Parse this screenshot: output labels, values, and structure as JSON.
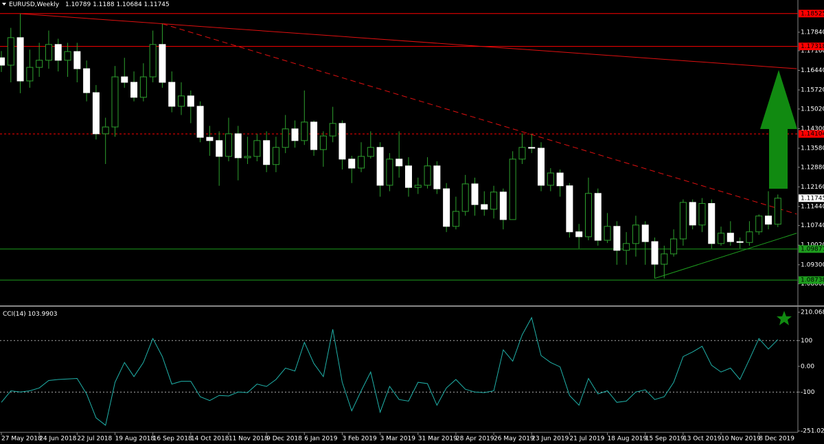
{
  "chart_data": [
    {
      "type": "candlestick",
      "title": "EURUSD,Weekly",
      "categories": [
        "27 May 2018",
        null,
        null,
        null,
        "24 Jun 2018",
        null,
        null,
        null,
        "22 Jul 2018",
        null,
        null,
        null,
        "19 Aug 2018",
        null,
        null,
        null,
        "16 Sep 2018",
        null,
        null,
        null,
        "14 Oct 2018",
        null,
        null,
        null,
        "11 Nov 2018",
        null,
        null,
        null,
        "9 Dec 2018",
        null,
        null,
        null,
        "6 Jan 2019",
        null,
        null,
        null,
        "3 Feb 2019",
        null,
        null,
        null,
        "3 Mar 2019",
        null,
        null,
        null,
        "31 Mar 2019",
        null,
        null,
        null,
        "28 Apr 2019",
        null,
        null,
        null,
        "26 May 2019",
        null,
        null,
        null,
        "23 Jun 2019",
        null,
        null,
        null,
        "21 Jul 2019",
        null,
        null,
        null,
        "18 Aug 2019",
        null,
        null,
        null,
        "15 Sep 2019",
        null,
        null,
        null,
        "13 Oct 2019",
        null,
        null,
        null,
        "10 Nov 2019",
        null,
        null,
        null,
        "8 Dec 2019",
        null,
        null
      ],
      "open": [
        1.169,
        1.1663,
        1.1764,
        1.1605,
        1.1655,
        1.1681,
        1.1739,
        1.1681,
        1.1713,
        1.165,
        1.1562,
        1.1411,
        1.1436,
        1.162,
        1.16,
        1.1545,
        1.162,
        1.1739,
        1.16,
        1.1512,
        1.155,
        1.1512,
        1.1398,
        1.1386,
        1.1328,
        1.1411,
        1.1323,
        1.1328,
        1.1386,
        1.1298,
        1.1361,
        1.1429,
        1.1386,
        1.1454,
        1.1353,
        1.1403,
        1.1449,
        1.1318,
        1.1285,
        1.1328,
        1.1361,
        1.1222,
        1.1318,
        1.1293,
        1.1214,
        1.1222,
        1.1293,
        1.1209,
        1.1071,
        1.1126,
        1.1227,
        1.1151,
        1.1134,
        1.1197,
        1.1096,
        1.1318,
        1.1361,
        1.1358,
        1.1222,
        1.1267,
        1.122,
        1.1051,
        1.1033,
        1.1192,
        1.102,
        1.1071,
        1.0983,
        1.1008,
        1.1076,
        1.1015,
        1.0932,
        1.097,
        1.1025,
        1.1159,
        1.1076,
        1.1155,
        1.1008,
        1.1046,
        1.1015,
        1.1012,
        1.1051,
        1.1109,
        1.10789
      ],
      "high": [
        1.1715,
        1.18,
        1.1852,
        1.172,
        1.1745,
        1.179,
        1.176,
        1.1745,
        1.1745,
        1.168,
        1.159,
        1.147,
        1.166,
        1.169,
        1.164,
        1.167,
        1.179,
        1.1815,
        1.164,
        1.16,
        1.157,
        1.153,
        1.144,
        1.142,
        1.147,
        1.144,
        1.14,
        1.141,
        1.142,
        1.14,
        1.148,
        1.146,
        1.157,
        1.146,
        1.142,
        1.151,
        1.146,
        1.133,
        1.138,
        1.142,
        1.138,
        1.134,
        1.142,
        1.1325,
        1.125,
        1.1325,
        1.131,
        1.123,
        1.118,
        1.126,
        1.125,
        1.12,
        1.122,
        1.121,
        1.1347,
        1.1412,
        1.141,
        1.138,
        1.1285,
        1.128,
        1.123,
        1.108,
        1.125,
        1.121,
        1.112,
        1.109,
        1.105,
        1.111,
        1.109,
        1.103,
        1.1,
        1.106,
        1.117,
        1.117,
        1.1175,
        1.117,
        1.107,
        1.109,
        1.103,
        1.109,
        1.1115,
        1.12,
        1.1188
      ],
      "low": [
        1.1638,
        1.16,
        1.156,
        1.158,
        1.162,
        1.165,
        1.164,
        1.162,
        1.16,
        1.153,
        1.139,
        1.13,
        1.14,
        1.158,
        1.153,
        1.153,
        1.16,
        1.158,
        1.149,
        1.148,
        1.145,
        1.138,
        1.133,
        1.122,
        1.131,
        1.124,
        1.13,
        1.131,
        1.127,
        1.127,
        1.134,
        1.136,
        1.137,
        1.133,
        1.129,
        1.138,
        1.128,
        1.123,
        1.127,
        1.132,
        1.118,
        1.12,
        1.125,
        1.118,
        1.119,
        1.121,
        1.119,
        1.105,
        1.106,
        1.111,
        1.111,
        1.111,
        1.11,
        1.106,
        1.11,
        1.13,
        1.134,
        1.12,
        1.12,
        1.118,
        1.103,
        1.099,
        1.102,
        1.1,
        1.101,
        1.093,
        1.093,
        1.096,
        1.093,
        1.088,
        1.088,
        1.096,
        1.1,
        1.106,
        1.105,
        1.099,
        1.1,
        1.1,
        1.099,
        1.1,
        1.104,
        1.106,
        1.10684
      ],
      "close": [
        1.1663,
        1.1764,
        1.1605,
        1.1655,
        1.1681,
        1.1739,
        1.1681,
        1.1713,
        1.165,
        1.1562,
        1.1411,
        1.1436,
        1.162,
        1.16,
        1.1545,
        1.162,
        1.1739,
        1.16,
        1.1512,
        1.155,
        1.1512,
        1.1398,
        1.1386,
        1.1328,
        1.1411,
        1.1323,
        1.1328,
        1.1386,
        1.1298,
        1.1361,
        1.1429,
        1.1386,
        1.1454,
        1.1353,
        1.1403,
        1.1449,
        1.1318,
        1.1285,
        1.1328,
        1.1361,
        1.1222,
        1.1318,
        1.1293,
        1.1214,
        1.1222,
        1.1293,
        1.1209,
        1.1071,
        1.1126,
        1.1227,
        1.1151,
        1.1134,
        1.1197,
        1.1096,
        1.1318,
        1.1361,
        1.1358,
        1.1222,
        1.1267,
        1.122,
        1.1051,
        1.1033,
        1.1192,
        1.102,
        1.1071,
        1.0983,
        1.1008,
        1.1076,
        1.1015,
        1.0932,
        1.097,
        1.1025,
        1.1159,
        1.1076,
        1.1155,
        1.1008,
        1.1046,
        1.1015,
        1.1012,
        1.1051,
        1.1109,
        1.1079,
        1.11745
      ],
      "up_color": "#000000",
      "down_color": "#ffffff",
      "wick_color": "#2ea12e",
      "ylim": [
        1.0801,
        1.1867
      ],
      "yticks": [
        {
          "value": 1.1784,
          "label": "1.17840"
        },
        {
          "value": 1.1716,
          "label": "1.17160"
        },
        {
          "value": 1.1644,
          "label": "1.16440"
        },
        {
          "value": 1.1572,
          "label": "1.15720"
        },
        {
          "value": 1.1502,
          "label": "1.15020"
        },
        {
          "value": 1.143,
          "label": "1.14300"
        },
        {
          "value": 1.1358,
          "label": "1.13580"
        },
        {
          "value": 1.1288,
          "label": "1.12880"
        },
        {
          "value": 1.1216,
          "label": "1.12160"
        },
        {
          "value": 1.1144,
          "label": "1.11440"
        },
        {
          "value": 1.1074,
          "label": "1.10740"
        },
        {
          "value": 1.1002,
          "label": "1.10020"
        },
        {
          "value": 1.093,
          "label": "1.09300"
        },
        {
          "value": 1.086,
          "label": "1.08600"
        }
      ],
      "price_lines": [
        {
          "value": 1.18525,
          "color": "#ff0000"
        },
        {
          "value": 1.17318,
          "color": "#ff0000"
        },
        {
          "value": 1.14104,
          "color": "#ff0000",
          "dash": true
        },
        {
          "value": 1.09877,
          "color": "#1e9e1e"
        },
        {
          "value": 1.08738,
          "color": "#1e9e1e"
        }
      ],
      "trendlines": [
        {
          "from": [
            2,
            1.1852
          ],
          "to": [
            84,
            1.165
          ],
          "color": "#e01010",
          "dash": false
        },
        {
          "from": [
            17,
            1.1815
          ],
          "to": [
            84,
            1.1116
          ],
          "color": "#e01010",
          "dash": true
        },
        {
          "from": [
            69,
            1.088
          ],
          "to": [
            84,
            1.1046
          ],
          "color": "#1e9e1e",
          "dash": false
        }
      ]
    },
    {
      "type": "line",
      "title": "CCI(14)",
      "values": [
        -140,
        -95,
        -100,
        -95,
        -84,
        -55,
        -51,
        -49,
        -47,
        -107,
        -200,
        -229,
        -62,
        15,
        -40,
        15,
        108,
        38,
        -69,
        -58,
        -58,
        -118,
        -133,
        -113,
        -115,
        -100,
        -102,
        -69,
        -78,
        -51,
        -7,
        -18,
        93,
        11,
        -40,
        144,
        -62,
        -173,
        -95,
        -22,
        -178,
        -78,
        -129,
        -135,
        -62,
        -67,
        -151,
        -84,
        -51,
        -89,
        -100,
        -102,
        -95,
        64,
        20,
        122,
        189,
        42,
        15,
        -2,
        -113,
        -151,
        -47,
        -107,
        -95,
        -140,
        -135,
        -100,
        -91,
        -129,
        -118,
        -62,
        38,
        56,
        78,
        4,
        -22,
        -7,
        -51,
        27,
        108,
        67,
        103.9903
      ],
      "color": "#20b2aa",
      "ylim": [
        -251.0263,
        210.0683
      ],
      "yticks": [
        210.0683,
        100,
        {
          "value": 0,
          "label": "0.00"
        },
        -100,
        -251.0263
      ],
      "levels": [
        100,
        -100
      ]
    }
  ]
}
